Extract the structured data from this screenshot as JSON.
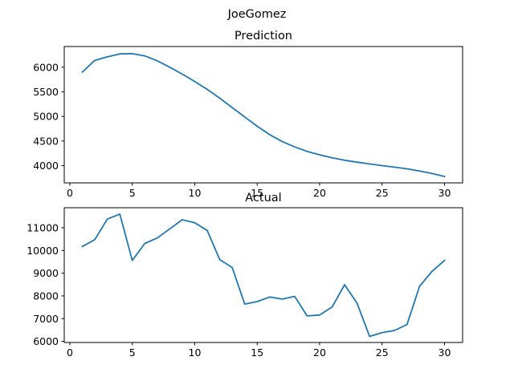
{
  "figure": {
    "suptitle": "JoeGomez",
    "line_color": "#1f77b4"
  },
  "chart_data": [
    {
      "type": "line",
      "title": "Prediction",
      "xlabel": "",
      "ylabel": "",
      "xlim": [
        -0.45,
        31.45
      ],
      "ylim": [
        3650,
        6420
      ],
      "xticks": [
        0,
        5,
        10,
        15,
        20,
        25,
        30
      ],
      "yticks": [
        4000,
        4500,
        5000,
        5500,
        6000
      ],
      "grid": false,
      "x": [
        1,
        2,
        3,
        4,
        5,
        6,
        7,
        8,
        9,
        10,
        11,
        12,
        13,
        14,
        15,
        16,
        17,
        18,
        19,
        20,
        21,
        22,
        23,
        24,
        25,
        26,
        27,
        28,
        29,
        30
      ],
      "series": [
        {
          "values": [
            5900,
            6140,
            6210,
            6270,
            6275,
            6230,
            6130,
            6000,
            5860,
            5710,
            5550,
            5370,
            5180,
            4990,
            4800,
            4630,
            4490,
            4380,
            4290,
            4220,
            4160,
            4110,
            4070,
            4035,
            4000,
            3970,
            3935,
            3890,
            3840,
            3780
          ]
        }
      ]
    },
    {
      "type": "line",
      "title": "Actual",
      "xlabel": "",
      "ylabel": "",
      "xlim": [
        -0.45,
        31.45
      ],
      "ylim": [
        5950,
        11880
      ],
      "xticks": [
        0,
        5,
        10,
        15,
        20,
        25,
        30
      ],
      "yticks": [
        6000,
        7000,
        8000,
        9000,
        10000,
        11000
      ],
      "grid": false,
      "x": [
        1,
        2,
        3,
        4,
        5,
        6,
        7,
        8,
        9,
        10,
        11,
        12,
        13,
        14,
        15,
        16,
        17,
        18,
        19,
        20,
        21,
        22,
        23,
        24,
        25,
        26,
        27,
        28,
        29,
        30
      ],
      "series": [
        {
          "values": [
            10170,
            10480,
            11380,
            11600,
            9560,
            10310,
            10550,
            10950,
            11350,
            11220,
            10880,
            9600,
            9250,
            7640,
            7750,
            7950,
            7860,
            7980,
            7120,
            7160,
            7510,
            8490,
            7680,
            6220,
            6380,
            6480,
            6740,
            8420,
            9080,
            9560
          ]
        }
      ]
    }
  ]
}
